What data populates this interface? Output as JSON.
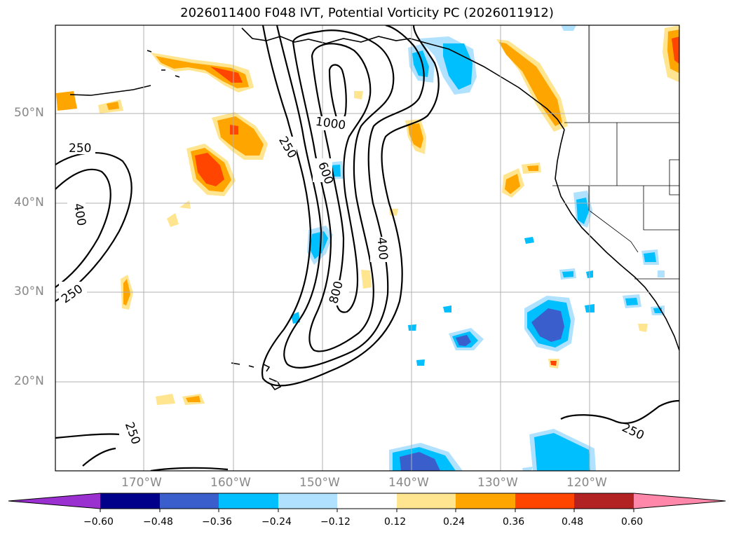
{
  "title": "2026011400 F048 IVT, Potential Vorticity PC (2026011912)",
  "lat_labels": [
    "50°N",
    "40°N",
    "30°N",
    "20°N"
  ],
  "lon_labels": [
    "170°W",
    "160°W",
    "150°W",
    "140°W",
    "130°W",
    "120°W"
  ],
  "contour_labels": [
    "1000",
    "250",
    "600",
    "250",
    "400",
    "800",
    "400",
    "250",
    "250",
    "250"
  ],
  "colorbar": {
    "ticks": [
      "−0.60",
      "−0.48",
      "−0.36",
      "−0.24",
      "−0.12",
      "0.12",
      "0.24",
      "0.36",
      "0.48",
      "0.60"
    ],
    "colors": [
      "#9b30d0",
      "#00008b",
      "#3a5fcd",
      "#00bfff",
      "#b0e2ff",
      "#ffffff",
      "#ffe58f",
      "#ffa500",
      "#ff4500",
      "#b22222",
      "#ff88aa"
    ]
  }
}
